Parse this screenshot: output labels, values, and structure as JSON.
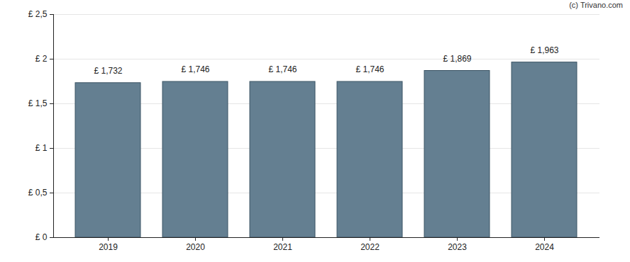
{
  "chart_data": {
    "type": "bar",
    "annotations": [
      "(c) Trivano.com"
    ],
    "categories": [
      "2019",
      "2020",
      "2021",
      "2022",
      "2023",
      "2024"
    ],
    "values": [
      1.732,
      1.746,
      1.746,
      1.746,
      1.869,
      1.963
    ],
    "value_labels": [
      "£ 1,732",
      "£ 1,746",
      "£ 1,746",
      "£ 1,746",
      "£ 1,869",
      "£ 1,963"
    ],
    "data_labels": true,
    "color": "#647f91",
    "ylim": [
      0,
      2.5
    ],
    "yticks": [
      {
        "value": 0,
        "label": "£ 0"
      },
      {
        "value": 0.5,
        "label": "£ 0,5"
      },
      {
        "value": 1,
        "label": "£ 1"
      },
      {
        "value": 1.5,
        "label": "£ 1,5"
      },
      {
        "value": 2,
        "label": "£ 2"
      },
      {
        "value": 2.5,
        "label": "£ 2,5"
      }
    ],
    "grid": true
  }
}
